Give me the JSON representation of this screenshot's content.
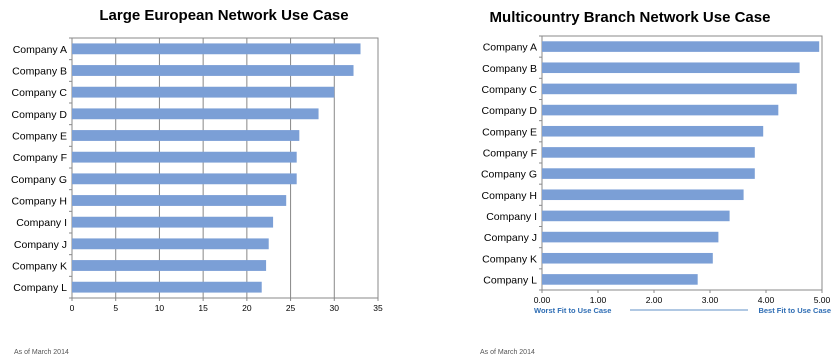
{
  "chart_data": [
    {
      "type": "bar",
      "orientation": "horizontal",
      "title": "Large European Network Use Case",
      "categories": [
        "Company A",
        "Company B",
        "Company C",
        "Company D",
        "Company E",
        "Company F",
        "Company G",
        "Company H",
        "Company I",
        "Company J",
        "Company K",
        "Company L"
      ],
      "values": [
        33,
        32.2,
        30,
        28.2,
        26,
        25.7,
        25.7,
        24.5,
        23,
        22.5,
        22.2,
        21.7
      ],
      "xlim": [
        0,
        35
      ],
      "xticks": [
        "0",
        "5",
        "10",
        "15",
        "20",
        "25",
        "30",
        "35"
      ],
      "xlabel": "",
      "ylabel": "",
      "grid": true,
      "bar_color": "#7b9fd6",
      "footnote": "As of March 2014"
    },
    {
      "type": "bar",
      "orientation": "horizontal",
      "title": "Multicountry Branch Network Use Case",
      "categories": [
        "Company A",
        "Company B",
        "Company C",
        "Company D",
        "Company E",
        "Company F",
        "Company G",
        "Company H",
        "Company I",
        "Company J",
        "Company K",
        "Company L"
      ],
      "values": [
        4.95,
        4.6,
        4.55,
        4.22,
        3.95,
        3.8,
        3.8,
        3.6,
        3.35,
        3.15,
        3.05,
        2.78
      ],
      "xlim": [
        0,
        5
      ],
      "xticks": [
        "0.00",
        "1.00",
        "2.00",
        "3.00",
        "4.00",
        "5.00"
      ],
      "xlabel": "",
      "ylabel": "",
      "grid": false,
      "bar_color": "#7b9fd6",
      "axis_note_left": "Worst Fit to Use Case",
      "axis_note_right": "Best Fit to Use Case",
      "axis_note_color": "#2e6db4",
      "footnote": "As of March 2014"
    }
  ]
}
